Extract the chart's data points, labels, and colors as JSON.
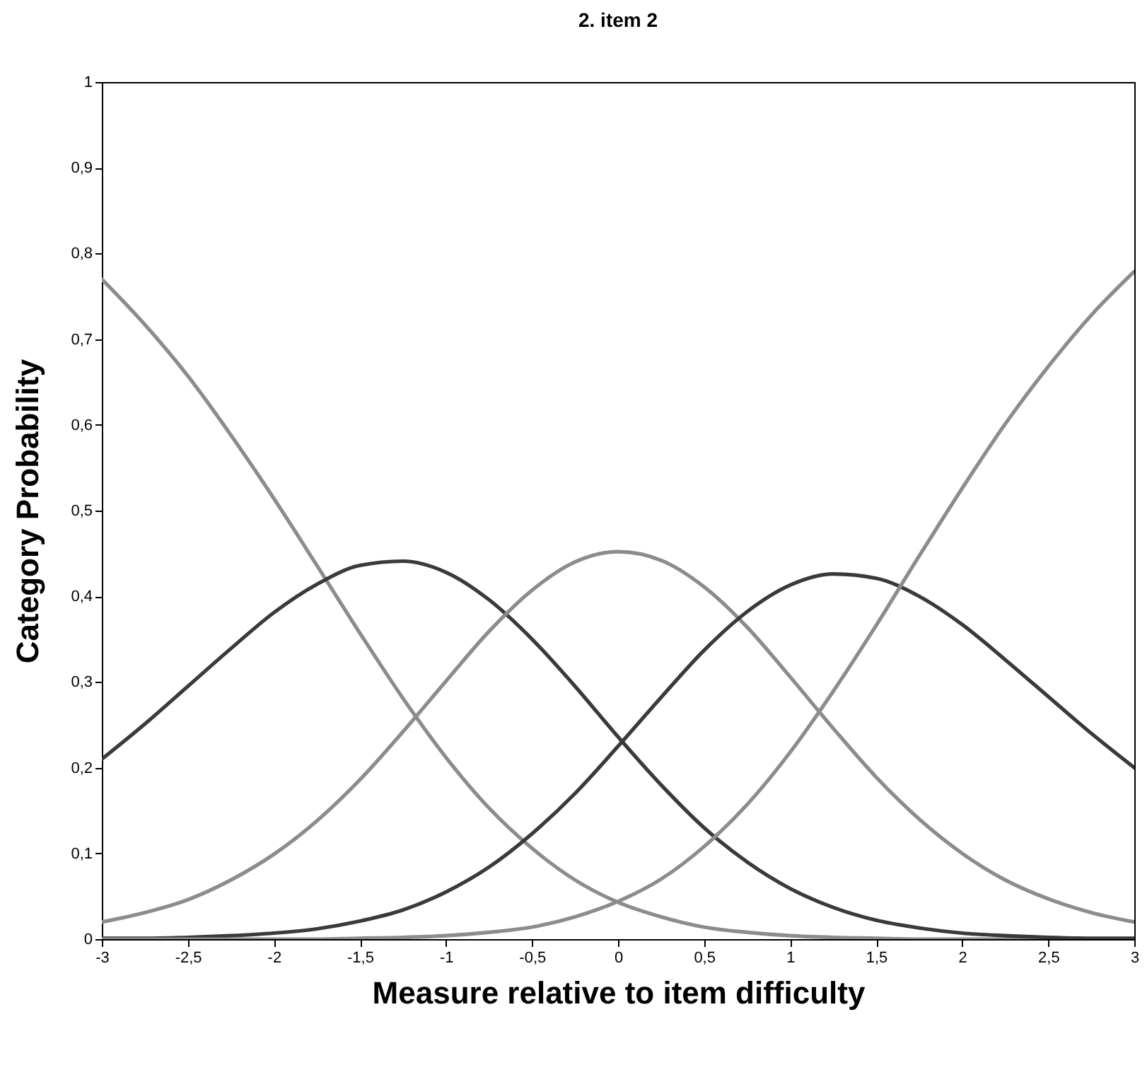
{
  "chart_data": {
    "type": "line",
    "title": "2. item 2",
    "xlabel": "Measure relative to item difficulty",
    "ylabel": "Category Probability",
    "x": [
      -3,
      -2.75,
      -2.5,
      -2.25,
      -2,
      -1.75,
      -1.5,
      -1.25,
      -1,
      -0.75,
      -0.5,
      -0.25,
      0,
      0.25,
      0.5,
      0.75,
      1,
      1.25,
      1.5,
      1.75,
      2,
      2.25,
      2.5,
      2.75,
      3
    ],
    "series": [
      {
        "color": "#8c8c8c",
        "values": [
          0.77,
          0.717,
          0.657,
          0.588,
          0.514,
          0.436,
          0.357,
          0.281,
          0.212,
          0.153,
          0.106,
          0.069,
          0.043,
          0.026,
          0.014,
          0.008,
          0.004,
          0.002,
          0.001,
          0,
          0,
          0,
          0,
          0,
          0
        ]
      },
      {
        "color": "#3a3a3a",
        "values": [
          0.21,
          0.251,
          0.295,
          0.339,
          0.381,
          0.414,
          0.436,
          0.441,
          0.428,
          0.396,
          0.35,
          0.295,
          0.236,
          0.18,
          0.13,
          0.09,
          0.059,
          0.037,
          0.022,
          0.013,
          0.007,
          0.004,
          0.002,
          0.001,
          0.001
        ]
      },
      {
        "color": "#8c8c8c",
        "values": [
          0.02,
          0.031,
          0.046,
          0.069,
          0.099,
          0.138,
          0.186,
          0.242,
          0.301,
          0.359,
          0.407,
          0.44,
          0.452,
          0.442,
          0.411,
          0.364,
          0.306,
          0.246,
          0.189,
          0.14,
          0.1,
          0.069,
          0.047,
          0.031,
          0.02
        ]
      },
      {
        "color": "#3a3a3a",
        "values": [
          0.001,
          0.001,
          0.002,
          0.004,
          0.007,
          0.012,
          0.021,
          0.034,
          0.055,
          0.084,
          0.123,
          0.17,
          0.225,
          0.282,
          0.337,
          0.382,
          0.413,
          0.426,
          0.421,
          0.4,
          0.367,
          0.326,
          0.283,
          0.24,
          0.2
        ]
      },
      {
        "color": "#8c8c8c",
        "values": [
          0,
          0,
          0,
          0,
          0,
          0,
          0.001,
          0.002,
          0.004,
          0.008,
          0.014,
          0.026,
          0.044,
          0.07,
          0.108,
          0.157,
          0.218,
          0.289,
          0.366,
          0.447,
          0.526,
          0.601,
          0.668,
          0.728,
          0.779
        ]
      }
    ],
    "xlim": [
      -3,
      3
    ],
    "xticks": [
      -3,
      {
        "value": -2.5,
        "label": "-2,5"
      },
      -2,
      {
        "value": -1.5,
        "label": "-1,5"
      },
      -1,
      {
        "value": -0.5,
        "label": "-0,5"
      },
      0,
      {
        "value": 0.5,
        "label": "0,5"
      },
      1,
      {
        "value": 1.5,
        "label": "1,5"
      },
      2,
      {
        "value": 2.5,
        "label": "2,5"
      },
      3
    ],
    "ylim": [
      0,
      1
    ],
    "yticks": [
      0,
      {
        "value": 0.1,
        "label": "0,1"
      },
      {
        "value": 0.2,
        "label": "0,2"
      },
      {
        "value": 0.3,
        "label": "0,3"
      },
      {
        "value": 0.4,
        "label": "0,4"
      },
      {
        "value": 0.5,
        "label": "0,5"
      },
      {
        "value": 0.6,
        "label": "0,6"
      },
      {
        "value": 0.7,
        "label": "0,7"
      },
      {
        "value": 0.8,
        "label": "0,8"
      },
      {
        "value": 0.9,
        "label": "0,9"
      },
      1
    ],
    "grid": false,
    "marker": "none",
    "line_style": "solid"
  }
}
